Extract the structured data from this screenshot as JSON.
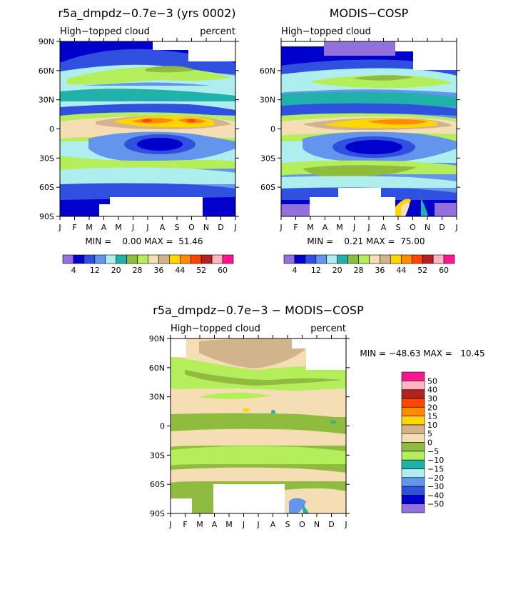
{
  "figure": {
    "palette": [
      "#9370db",
      "#0000cd",
      "#3050e0",
      "#6495ed",
      "#afeeee",
      "#20b2aa",
      "#8fbc3f",
      "#b4ee5a",
      "#f5deb3",
      "#d2b48c",
      "#ffd700",
      "#ff8c00",
      "#ff4500",
      "#b22222",
      "#ffb6c1",
      "#ff1493"
    ],
    "diff_palette": [
      "#9370db",
      "#0000cd",
      "#3050e0",
      "#6495ed",
      "#afeeee",
      "#20b2aa",
      "#b4ee5a",
      "#8fbc3f",
      "#f5deb3",
      "#d2b48c",
      "#ffd700",
      "#ff8c00",
      "#ff4500",
      "#b22222",
      "#ffb6c1",
      "#ff1493"
    ]
  },
  "chart_data": [
    {
      "type": "heatmap",
      "title": "r5a_dmpdz−0.7e−3 (yrs 0002)",
      "subtitle_left": "High−topped cloud",
      "subtitle_right": "percent",
      "x_ticks": [
        "J",
        "F",
        "M",
        "A",
        "M",
        "J",
        "J",
        "A",
        "S",
        "O",
        "N",
        "D",
        "J"
      ],
      "y_ticks": [
        "90N",
        "60N",
        "30N",
        "0",
        "30S",
        "60S",
        "90S"
      ],
      "ylim": [
        -90,
        90
      ],
      "stats_text": "MIN =    0.00 MAX =  51.46",
      "min": 0.0,
      "max": 51.46,
      "colorbar_labels": [
        "4",
        "12",
        "20",
        "28",
        "36",
        "44",
        "52",
        "60"
      ],
      "levels": [
        4,
        8,
        12,
        16,
        20,
        24,
        28,
        32,
        36,
        40,
        44,
        48,
        52,
        56,
        60
      ]
    },
    {
      "type": "heatmap",
      "title": "MODIS−COSP",
      "subtitle_left": "High−topped cloud",
      "x_ticks": [
        "J",
        "F",
        "M",
        "A",
        "M",
        "J",
        "J",
        "A",
        "S",
        "O",
        "N",
        "D",
        "J"
      ],
      "y_ticks": [
        "60N",
        "30N",
        "0",
        "30S",
        "60S"
      ],
      "ylim": [
        -90,
        90
      ],
      "stats_text": "MIN =    0.21 MAX =  75.00",
      "min": 0.21,
      "max": 75.0,
      "colorbar_labels": [
        "4",
        "12",
        "20",
        "28",
        "36",
        "44",
        "52",
        "60"
      ],
      "levels": [
        4,
        8,
        12,
        16,
        20,
        24,
        28,
        32,
        36,
        40,
        44,
        48,
        52,
        56,
        60
      ]
    },
    {
      "type": "heatmap",
      "title": "r5a_dmpdz−0.7e−3 − MODIS−COSP",
      "subtitle_left": "High−topped cloud",
      "subtitle_right": "percent",
      "x_ticks": [
        "J",
        "F",
        "M",
        "A",
        "M",
        "J",
        "J",
        "A",
        "S",
        "O",
        "N",
        "D",
        "J"
      ],
      "y_ticks": [
        "90N",
        "60N",
        "30N",
        "0",
        "30S",
        "60S",
        "90S"
      ],
      "ylim": [
        -90,
        90
      ],
      "stats_text": "MIN = −48.63 MAX =   10.45",
      "min": -48.63,
      "max": 10.45,
      "colorbar_labels": [
        "50",
        "40",
        "30",
        "20",
        "15",
        "10",
        "5",
        "0",
        "−5",
        "−10",
        "−15",
        "−20",
        "−30",
        "−40",
        "−50"
      ],
      "levels": [
        -50,
        -40,
        -30,
        -20,
        -15,
        -10,
        -5,
        0,
        5,
        10,
        15,
        20,
        30,
        40,
        50
      ]
    }
  ]
}
